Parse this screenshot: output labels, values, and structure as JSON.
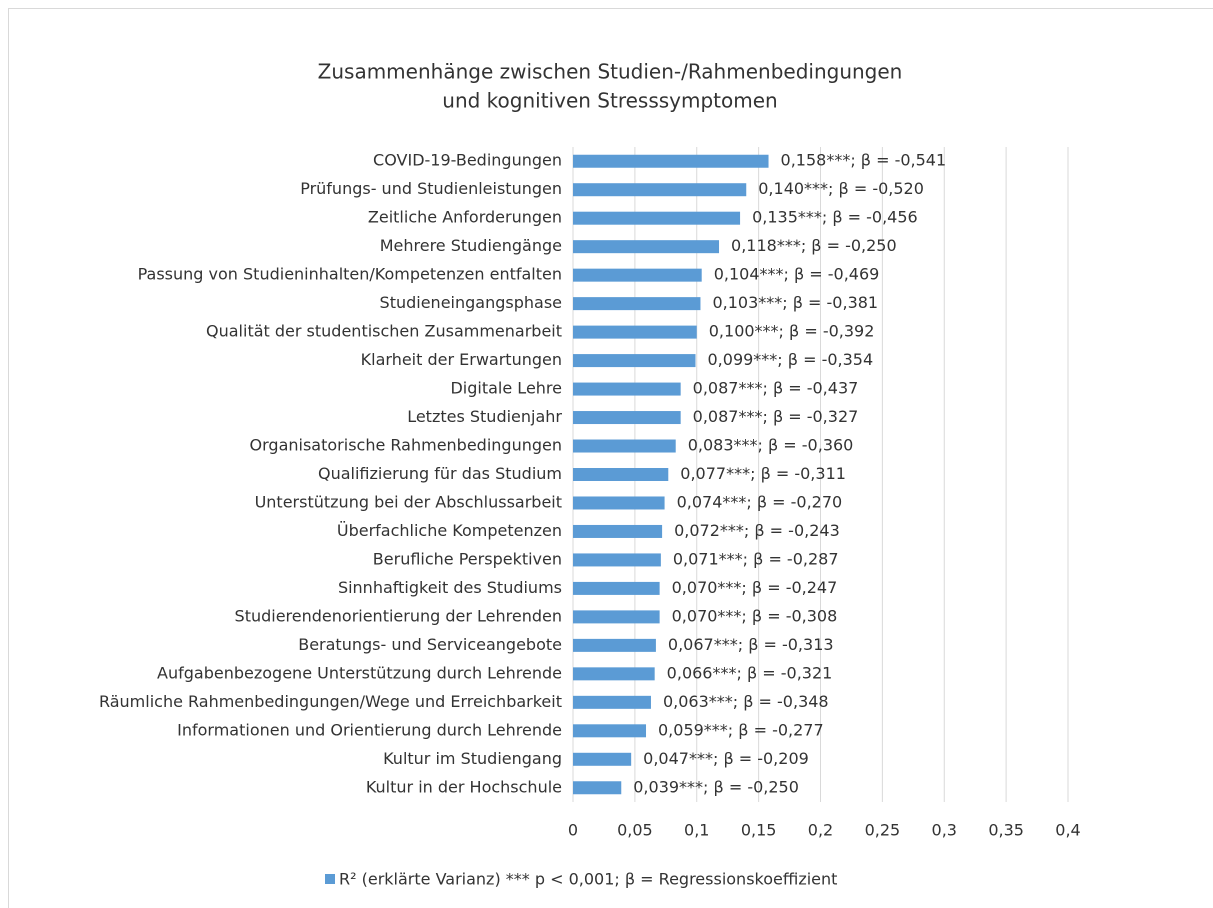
{
  "chart_data": {
    "type": "barh",
    "title": [
      "Zusammenhänge zwischen Studien-/Rahmenbedingungen",
      "und kognitiven Stresssymptomen"
    ],
    "categories": [
      "COVID-19-Bedingungen",
      "Prüfungs- und Studienleistungen",
      "Zeitliche Anforderungen",
      "Mehrere Studiengänge",
      "Passung von Studieninhalten/Kompetenzen entfalten",
      "Studieneingangsphase",
      "Qualität der studentischen Zusammenarbeit",
      "Klarheit der Erwartungen",
      "Digitale Lehre",
      "Letztes Studienjahr",
      "Organisatorische Rahmenbedingungen",
      "Qualifizierung für das Studium",
      "Unterstützung bei der Abschlussarbeit",
      "Überfachliche Kompetenzen",
      "Berufliche Perspektiven",
      "Sinnhaftigkeit des Studiums",
      "Studierendenorientierung der Lehrenden",
      "Beratungs- und Serviceangebote",
      "Aufgabenbezogene Unterstützung durch Lehrende",
      "Räumliche Rahmenbedingungen/Wege und Erreichbarkeit",
      "Informationen und Orientierung durch Lehrende",
      "Kultur im Studiengang",
      "Kultur in der Hochschule"
    ],
    "series": [
      {
        "name": "R² (erklärte Varianz) *** p < 0,001; β = Regressionskoeffizient",
        "color": "#5b9bd5",
        "values": [
          0.158,
          0.14,
          0.135,
          0.118,
          0.104,
          0.103,
          0.1,
          0.099,
          0.087,
          0.087,
          0.083,
          0.077,
          0.074,
          0.072,
          0.071,
          0.07,
          0.07,
          0.067,
          0.066,
          0.063,
          0.059,
          0.047,
          0.039
        ],
        "value_labels": [
          "0,158***; β = -0,541",
          "0,140***; β = -0,520",
          "0,135***; β = -0,456",
          "0,118***; β = -0,250",
          "0,104***; β = -0,469",
          "0,103***; β = -0,381",
          "0,100***; β = -0,392",
          "0,099***; β = -0,354",
          "0,087***; β = -0,437",
          "0,087***; β = -0,327",
          "0,083***; β = -0,360",
          "0,077***; β = -0,311",
          "0,074***; β = -0,270",
          "0,072***; β = -0,243",
          "0,071***; β = -0,287",
          "0,070***; β = -0,247",
          "0,070***; β = -0,308",
          "0,067***; β = -0,313",
          "0,066***; β = -0,321",
          "0,063***; β = -0,348",
          "0,059***; β = -0,277",
          "0,047***; β = -0,209",
          "0,039***; β = -0,250"
        ]
      }
    ],
    "xlim": [
      0,
      0.4
    ],
    "xticks": [
      0,
      {
        "value": 0.05,
        "label": "0,05"
      },
      {
        "value": 0.1,
        "label": "0,1"
      },
      {
        "value": 0.15,
        "label": "0,15"
      },
      {
        "value": 0.2,
        "label": "0,2"
      },
      {
        "value": 0.25,
        "label": "0,25"
      },
      {
        "value": 0.3,
        "label": "0,3"
      },
      {
        "value": 0.35,
        "label": "0,35"
      },
      {
        "value": 0.4,
        "label": "0,4"
      }
    ],
    "grid": true,
    "legend": "bottom"
  }
}
